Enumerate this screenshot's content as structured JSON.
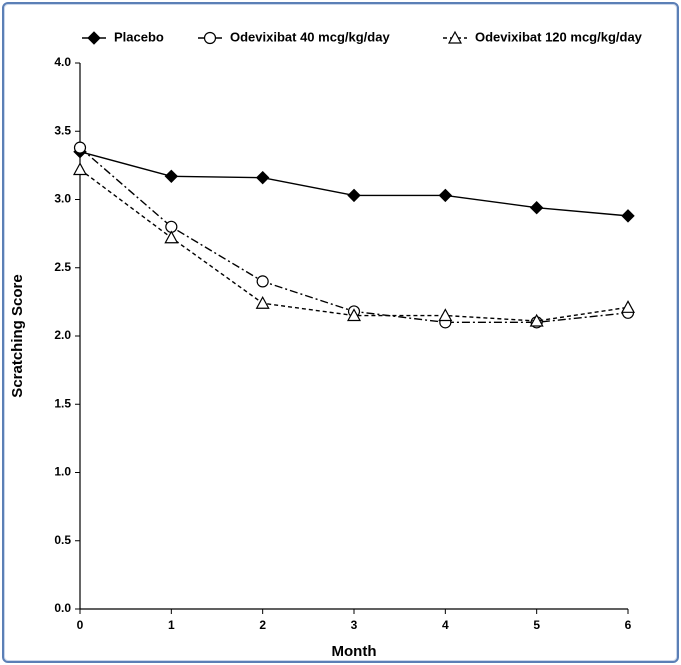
{
  "chart_data": {
    "type": "line",
    "x_label": "Month",
    "y_label": "Scratching Score",
    "x": [
      0,
      1,
      2,
      3,
      4,
      5,
      6
    ],
    "series": [
      {
        "name": "Placebo",
        "color": "#000000",
        "marker": "diamond",
        "linestyle": "solid",
        "values": [
          3.35,
          3.17,
          3.16,
          3.03,
          3.03,
          2.94,
          2.88
        ]
      },
      {
        "name": "Odevixibat 40 mcg/kg/day",
        "color": "#000000",
        "marker": "circle",
        "linestyle": "dashdot",
        "values": [
          3.38,
          2.8,
          2.4,
          2.18,
          2.1,
          2.1,
          2.17
        ]
      },
      {
        "name": "Odevixibat 120 mcg/kg/day",
        "color": "#000000",
        "marker": "triangle",
        "linestyle": "dashed",
        "values": [
          3.22,
          2.72,
          2.24,
          2.15,
          2.15,
          2.11,
          2.21
        ]
      }
    ],
    "xlim": [
      0,
      6
    ],
    "xticks": [
      0,
      1,
      2,
      3,
      4,
      5,
      6
    ],
    "ylim": [
      0,
      4
    ],
    "yticks": [
      {
        "value": 0,
        "label": "0.0"
      },
      {
        "value": 0.5,
        "label": "0.5"
      },
      {
        "value": 1,
        "label": "1.0"
      },
      {
        "value": 1.5,
        "label": "1.5"
      },
      {
        "value": 2,
        "label": "2.0"
      },
      {
        "value": 2.5,
        "label": "2.5"
      },
      {
        "value": 3,
        "label": "3.0"
      },
      {
        "value": 3.5,
        "label": "3.5"
      },
      {
        "value": 4,
        "label": "4.0"
      }
    ],
    "grid": false,
    "legend": "top"
  }
}
